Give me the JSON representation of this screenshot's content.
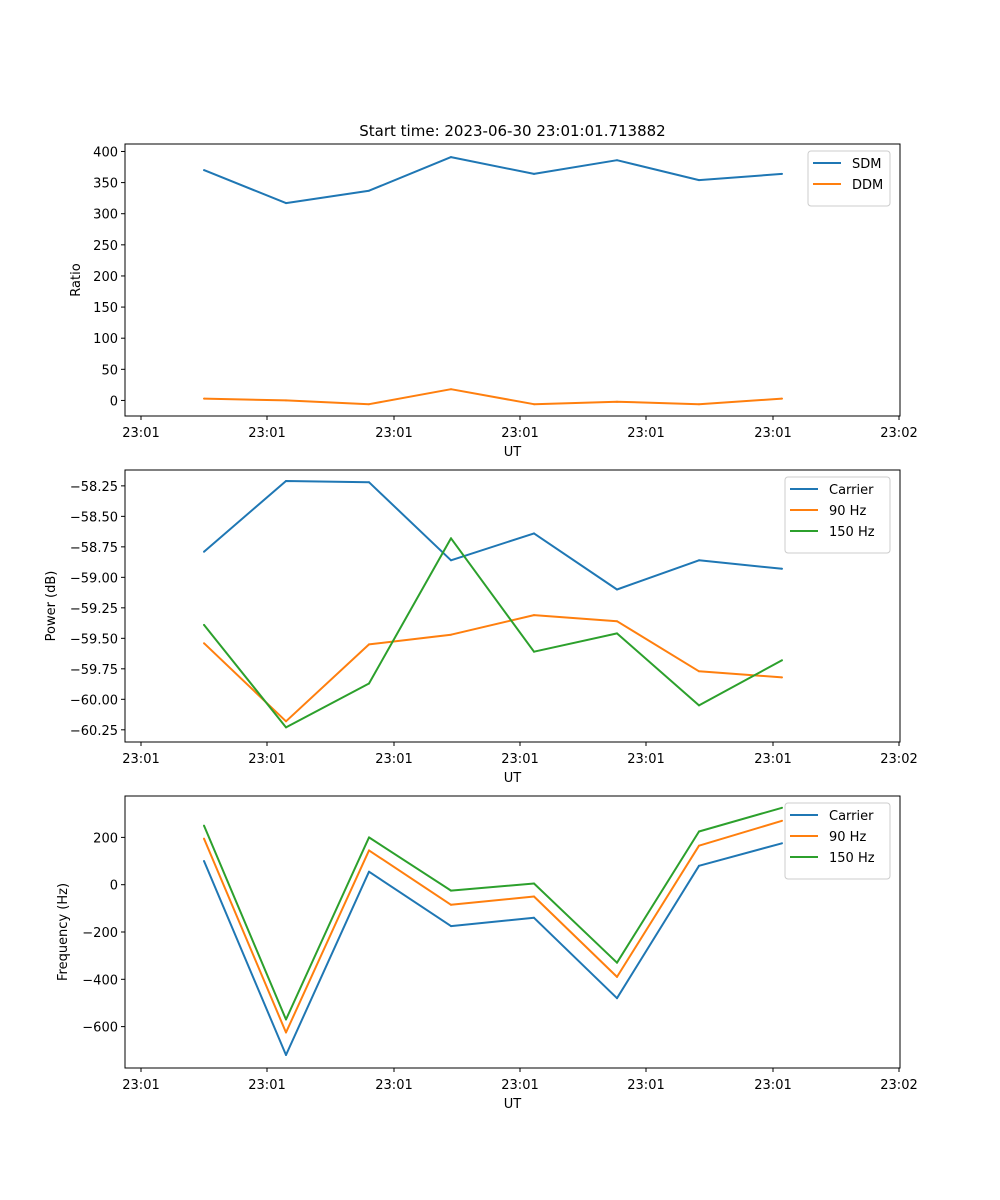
{
  "title": "Start time: 2023-06-30 23:01:01.713882",
  "chart_data": [
    {
      "type": "line",
      "xlabel": "UT",
      "ylabel": "Ratio",
      "x_tick_labels": [
        "23:01",
        "23:01",
        "23:01",
        "23:01",
        "23:01",
        "23:01",
        "23:02"
      ],
      "y_ticks": [
        0,
        50,
        100,
        150,
        200,
        250,
        300,
        350,
        400
      ],
      "ylim": [
        -25,
        412
      ],
      "legend_position": "top-right",
      "series": [
        {
          "name": "SDM",
          "color": "#1f77b4",
          "values": [
            370,
            317,
            337,
            391,
            364,
            386,
            354,
            364
          ]
        },
        {
          "name": "DDM",
          "color": "#ff7f0e",
          "values": [
            3,
            0,
            -6,
            18,
            -6,
            -2,
            -6,
            3
          ]
        }
      ]
    },
    {
      "type": "line",
      "xlabel": "UT",
      "ylabel": "Power (dB)",
      "x_tick_labels": [
        "23:01",
        "23:01",
        "23:01",
        "23:01",
        "23:01",
        "23:01",
        "23:02"
      ],
      "y_ticks": [
        -60.25,
        -60.0,
        -59.75,
        -59.5,
        -59.25,
        -59.0,
        -58.75,
        -58.5,
        -58.25
      ],
      "y_tick_labels": [
        "−60.25",
        "−60.00",
        "−59.75",
        "−59.50",
        "−59.25",
        "−59.00",
        "−58.75",
        "−58.50",
        "−58.25"
      ],
      "ylim": [
        -60.35,
        -58.12
      ],
      "legend_position": "top-right",
      "series": [
        {
          "name": "Carrier",
          "color": "#1f77b4",
          "values": [
            -58.79,
            -58.21,
            -58.22,
            -58.86,
            -58.64,
            -59.1,
            -58.86,
            -58.93
          ]
        },
        {
          "name": "90 Hz",
          "color": "#ff7f0e",
          "values": [
            -59.54,
            -60.18,
            -59.55,
            -59.47,
            -59.31,
            -59.36,
            -59.77,
            -59.82
          ]
        },
        {
          "name": "150 Hz",
          "color": "#2ca02c",
          "values": [
            -59.39,
            -60.23,
            -59.87,
            -58.68,
            -59.61,
            -59.46,
            -60.05,
            -59.68
          ]
        }
      ]
    },
    {
      "type": "line",
      "xlabel": "UT",
      "ylabel": "Frequency (Hz)",
      "x_tick_labels": [
        "23:01",
        "23:01",
        "23:01",
        "23:01",
        "23:01",
        "23:01",
        "23:02"
      ],
      "y_ticks": [
        -600,
        -400,
        -200,
        0,
        200
      ],
      "y_tick_labels": [
        "−600",
        "−400",
        "−200",
        "0",
        "200"
      ],
      "ylim": [
        -775,
        375
      ],
      "legend_position": "top-right",
      "series": [
        {
          "name": "Carrier",
          "color": "#1f77b4",
          "values": [
            100,
            -720,
            55,
            -175,
            -140,
            -480,
            80,
            175
          ]
        },
        {
          "name": "90 Hz",
          "color": "#ff7f0e",
          "values": [
            195,
            -625,
            145,
            -85,
            -50,
            -390,
            165,
            270
          ]
        },
        {
          "name": "150 Hz",
          "color": "#2ca02c",
          "values": [
            250,
            -570,
            200,
            -25,
            5,
            -330,
            225,
            325
          ]
        }
      ]
    }
  ]
}
